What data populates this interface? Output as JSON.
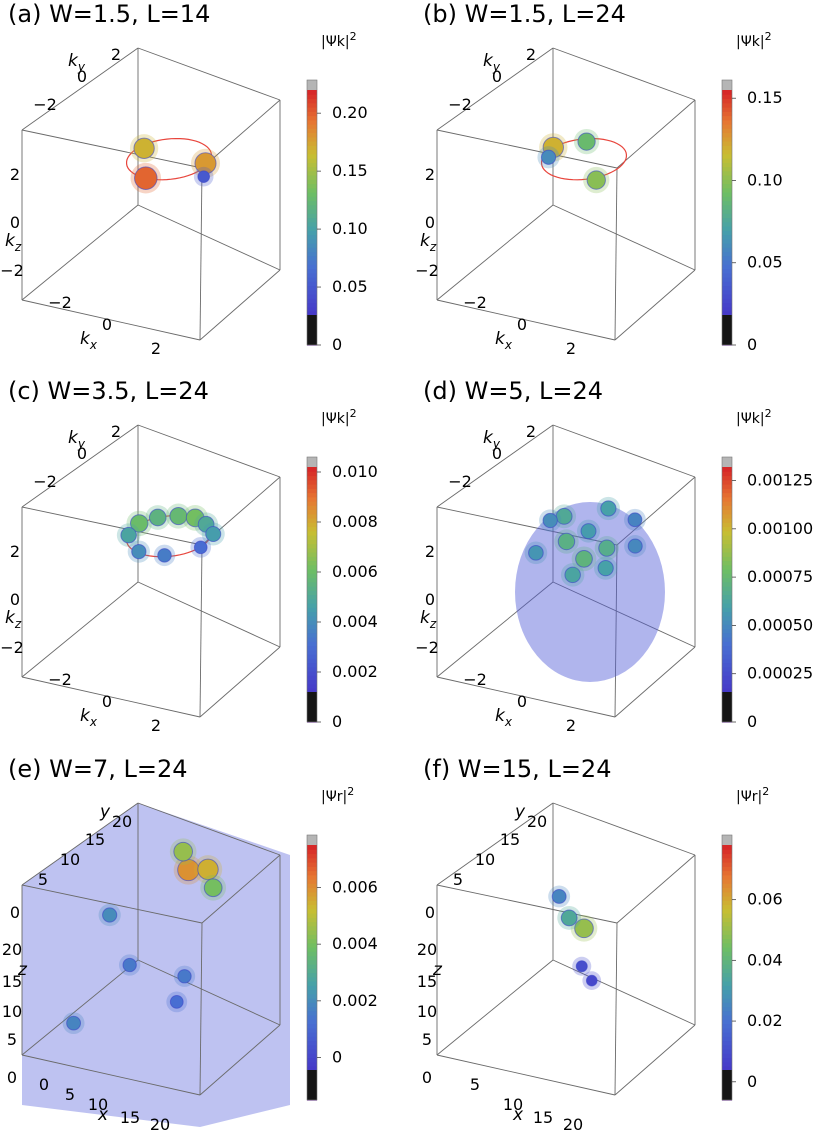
{
  "chart_data": [
    {
      "panel": "a",
      "title": "(a) W=1.5, L=14",
      "type": "scatter",
      "space": "momentum",
      "colorbar": {
        "label": "|Ψk|",
        "superscript": "2",
        "range": [
          0,
          0.22
        ],
        "ticks": [
          "0",
          "0.05",
          "0.10",
          "0.15",
          "0.20"
        ],
        "tick_values": [
          0,
          0.05,
          0.1,
          0.15,
          0.2
        ]
      },
      "axes": {
        "x": {
          "label": "kx",
          "ticks": [
            "−2",
            "0",
            "2"
          ]
        },
        "y": {
          "label": "ky",
          "ticks": [
            "−2",
            "0",
            "2"
          ]
        },
        "z": {
          "label": "kz",
          "ticks": [
            "−2",
            "0",
            "2"
          ]
        }
      },
      "ring": {
        "color": "#e8453c"
      },
      "points": [
        {
          "x": 0.0,
          "y": -1.2,
          "z": 1.0,
          "value": 0.2
        },
        {
          "x": 1.1,
          "y": 0.2,
          "z": 1.0,
          "value": 0.18
        },
        {
          "x": -1.1,
          "y": 0.4,
          "z": 0.9,
          "value": 0.17
        },
        {
          "x": 1.3,
          "y": -0.2,
          "z": 0.8,
          "value": 0.05
        }
      ]
    },
    {
      "panel": "b",
      "title": "(b) W=1.5, L=24",
      "type": "scatter",
      "space": "momentum",
      "colorbar": {
        "label": "|Ψk|",
        "superscript": "2",
        "range": [
          0,
          0.155
        ],
        "ticks": [
          "0",
          "0.05",
          "0.10",
          "0.15"
        ],
        "tick_values": [
          0,
          0.05,
          0.1,
          0.15
        ]
      },
      "axes": {
        "x": {
          "label": "kx",
          "ticks": [
            "−2",
            "0",
            "2"
          ]
        },
        "y": {
          "label": "ky",
          "ticks": [
            "−2",
            "0",
            "2"
          ]
        },
        "z": {
          "label": "kz",
          "ticks": [
            "−2",
            "0",
            "2"
          ]
        }
      },
      "ring": {
        "color": "#e8453c"
      },
      "points": [
        {
          "x": -1.1,
          "y": 0.1,
          "z": 1.1,
          "value": 0.12
        },
        {
          "x": 1.0,
          "y": -0.9,
          "z": 1.0,
          "value": 0.1
        },
        {
          "x": -0.5,
          "y": 0.9,
          "z": 1.0,
          "value": 0.09
        },
        {
          "x": -1.0,
          "y": -0.3,
          "z": 1.0,
          "value": 0.06
        }
      ]
    },
    {
      "panel": "c",
      "title": "(c) W=3.5, L=24",
      "type": "scatter",
      "space": "momentum",
      "colorbar": {
        "label": "|Ψk|",
        "superscript": "2",
        "range": [
          0,
          0.0102
        ],
        "ticks": [
          "0",
          "0.002",
          "0.004",
          "0.006",
          "0.008",
          "0.010"
        ],
        "tick_values": [
          0,
          0.002,
          0.004,
          0.006,
          0.008,
          0.01
        ]
      },
      "axes": {
        "x": {
          "label": "kx",
          "ticks": [
            "−2",
            "0",
            "2"
          ]
        },
        "y": {
          "label": "ky",
          "ticks": [
            "−2",
            "0",
            "2"
          ]
        },
        "z": {
          "label": "kz",
          "ticks": [
            "−2",
            "0",
            "2"
          ]
        }
      },
      "ring": {
        "color": "#e8453c"
      },
      "points": [
        {
          "x": -1.2,
          "y": 0.3,
          "z": 1.0,
          "value": 0.006
        },
        {
          "x": -0.9,
          "y": 0.8,
          "z": 1.0,
          "value": 0.0055
        },
        {
          "x": -0.4,
          "y": 1.1,
          "z": 1.0,
          "value": 0.0058
        },
        {
          "x": 0.1,
          "y": 1.2,
          "z": 1.0,
          "value": 0.0062
        },
        {
          "x": 0.6,
          "y": 1.0,
          "z": 1.0,
          "value": 0.005
        },
        {
          "x": 1.1,
          "y": 0.6,
          "z": 1.0,
          "value": 0.0045
        },
        {
          "x": -1.1,
          "y": -0.4,
          "z": 1.0,
          "value": 0.0048
        },
        {
          "x": -0.3,
          "y": -1.1,
          "z": 1.0,
          "value": 0.004
        },
        {
          "x": 0.5,
          "y": -1.0,
          "z": 1.0,
          "value": 0.0035
        },
        {
          "x": 1.2,
          "y": -0.2,
          "z": 1.0,
          "value": 0.003
        }
      ]
    },
    {
      "panel": "d",
      "title": "(d) W=5, L=24",
      "type": "scatter",
      "space": "momentum",
      "colorbar": {
        "label": "|Ψk|",
        "superscript": "2",
        "range": [
          0,
          0.00132
        ],
        "ticks": [
          "0",
          "0.00025",
          "0.00050",
          "0.00075",
          "0.00100",
          "0.00125"
        ],
        "tick_values": [
          0,
          0.00025,
          0.0005,
          0.00075,
          0.001,
          0.00125
        ]
      },
      "axes": {
        "x": {
          "label": "kx",
          "ticks": [
            "−2",
            "0",
            "2"
          ]
        },
        "y": {
          "label": "ky",
          "ticks": [
            "−2",
            "0",
            "2"
          ]
        },
        "z": {
          "label": "kz",
          "ticks": [
            "−2",
            "0",
            "2"
          ]
        }
      },
      "points": [
        {
          "x": -0.8,
          "y": 0.2,
          "z": 1.4,
          "value": 0.00065
        },
        {
          "x": 0.3,
          "y": 0.8,
          "z": 1.6,
          "value": 0.0006
        },
        {
          "x": -0.2,
          "y": -0.6,
          "z": 1.1,
          "value": 0.0007
        },
        {
          "x": 0.9,
          "y": -0.2,
          "z": 0.9,
          "value": 0.00068
        },
        {
          "x": -1.1,
          "y": -0.8,
          "z": 0.6,
          "value": 0.00055
        },
        {
          "x": 0.4,
          "y": -1.2,
          "z": 0.4,
          "value": 0.00062
        },
        {
          "x": 1.4,
          "y": 0.5,
          "z": 0.7,
          "value": 0.0005
        },
        {
          "x": -0.5,
          "y": 1.0,
          "z": 0.5,
          "value": 0.00058
        },
        {
          "x": 0.0,
          "y": 0.0,
          "z": 0.2,
          "value": 0.00072
        },
        {
          "x": 1.0,
          "y": 1.1,
          "z": 1.2,
          "value": 0.00048
        },
        {
          "x": -1.4,
          "y": 0.4,
          "z": 1.0,
          "value": 0.00052
        },
        {
          "x": 0.6,
          "y": 0.2,
          "z": -0.1,
          "value": 0.0006
        }
      ]
    },
    {
      "panel": "e",
      "title": "(e) W=7, L=24",
      "type": "scatter",
      "space": "real",
      "colorbar": {
        "label": "|Ψr|",
        "superscript": "2",
        "range": [
          -0.0015,
          0.0075
        ],
        "ticks": [
          "0",
          "0.002",
          "0.004",
          "0.006"
        ],
        "tick_values": [
          0,
          0.002,
          0.004,
          0.006
        ]
      },
      "axes": {
        "x": {
          "label": "x",
          "ticks": [
            "0",
            "5",
            "10",
            "15",
            "20"
          ]
        },
        "y": {
          "label": "y",
          "ticks": [
            "0",
            "5",
            "10",
            "15",
            "20"
          ]
        },
        "z": {
          "label": "z",
          "ticks": [
            "0",
            "5",
            "10",
            "15",
            "20"
          ]
        }
      },
      "points": [
        {
          "x": 12,
          "y": 16,
          "z": 20,
          "value": 0.006
        },
        {
          "x": 14,
          "y": 17,
          "z": 20,
          "value": 0.0055
        },
        {
          "x": 10,
          "y": 18,
          "z": 21,
          "value": 0.0045
        },
        {
          "x": 16,
          "y": 15,
          "z": 19,
          "value": 0.004
        },
        {
          "x": 4,
          "y": 12,
          "z": 14,
          "value": 0.002
        },
        {
          "x": 8,
          "y": 10,
          "z": 9,
          "value": 0.0015
        },
        {
          "x": 18,
          "y": 6,
          "z": 12,
          "value": 0.0015
        },
        {
          "x": 5,
          "y": 3,
          "z": 4,
          "value": 0.0018
        },
        {
          "x": 15,
          "y": 9,
          "z": 6,
          "value": 0.0012
        }
      ]
    },
    {
      "panel": "f",
      "title": "(f) W=15, L=24",
      "type": "scatter",
      "space": "real",
      "colorbar": {
        "label": "|Ψr|",
        "superscript": "2",
        "range": [
          -0.006,
          0.078
        ],
        "ticks": [
          "0",
          "0.02",
          "0.04",
          "0.06"
        ],
        "tick_values": [
          0,
          0.02,
          0.04,
          0.06
        ]
      },
      "axes": {
        "x": {
          "label": "x",
          "ticks": [
            "5",
            "10",
            "15",
            "20"
          ]
        },
        "y": {
          "label": "y",
          "ticks": [
            "0",
            "5",
            "10",
            "15",
            "20"
          ]
        },
        "z": {
          "label": "z",
          "ticks": [
            "0",
            "5",
            "10",
            "15",
            "20"
          ]
        }
      },
      "points": [
        {
          "x": 12,
          "y": 12,
          "z": 14,
          "value": 0.05
        },
        {
          "x": 10,
          "y": 12,
          "z": 15,
          "value": 0.035
        },
        {
          "x": 8,
          "y": 13,
          "z": 17,
          "value": 0.025
        },
        {
          "x": 13,
          "y": 10,
          "z": 10,
          "value": 0.01
        },
        {
          "x": 15,
          "y": 9,
          "z": 9,
          "value": 0.008
        }
      ]
    }
  ]
}
